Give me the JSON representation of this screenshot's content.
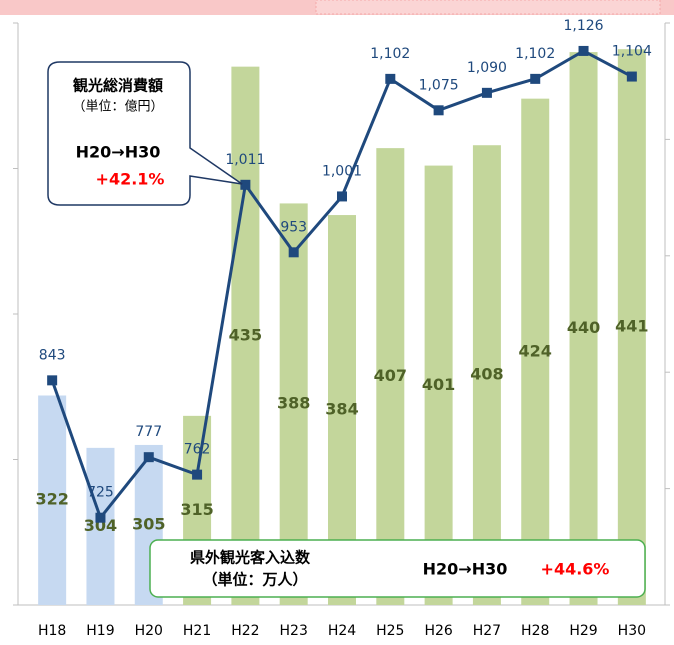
{
  "chart_data": {
    "type": "combo",
    "categories": [
      "H18",
      "H19",
      "H20",
      "H21",
      "H22",
      "H23",
      "H24",
      "H25",
      "H26",
      "H27",
      "H28",
      "H29",
      "H30"
    ],
    "series": [
      {
        "type": "bar",
        "colors": [
          "#c6d9f1",
          "#c6d9f1",
          "#c6d9f1",
          "#c3d69b",
          "#c3d69b",
          "#c3d69b",
          "#c3d69b",
          "#c3d69b",
          "#c3d69b",
          "#c3d69b",
          "#c3d69b",
          "#c3d69b",
          "#c3d69b"
        ],
        "label_color": "#4f6228",
        "values": [
          322,
          304,
          305,
          315,
          435,
          388,
          384,
          407,
          401,
          408,
          424,
          440,
          441
        ]
      },
      {
        "type": "line",
        "axis": "y2",
        "color": "#1f497d",
        "values": [
          843,
          725,
          777,
          762,
          1011,
          953,
          1001,
          1102,
          1075,
          1090,
          1102,
          1126,
          1104
        ],
        "value_labels": [
          "843",
          "725",
          "777",
          "762",
          "1,011",
          "953",
          "1,001",
          "1,102",
          "1,075",
          "1,090",
          "1,102",
          "1,126",
          "1,104"
        ]
      }
    ],
    "ylim": [
      250,
      450
    ],
    "yticks": [
      250,
      300,
      350,
      400,
      450
    ],
    "y2lim": [
      650,
      1150
    ],
    "y2ticks": [
      650,
      750,
      850,
      950,
      1050,
      1150
    ],
    "callout_line": {
      "title": "観光総消費額",
      "unit": "（単位：億円）",
      "period": "H20→H30",
      "change": "+42.1%"
    },
    "callout_bar": {
      "title": "県外観光客入込数",
      "unit": "（単位：万人）",
      "period": "H20→H30",
      "change": "+44.6%"
    }
  }
}
